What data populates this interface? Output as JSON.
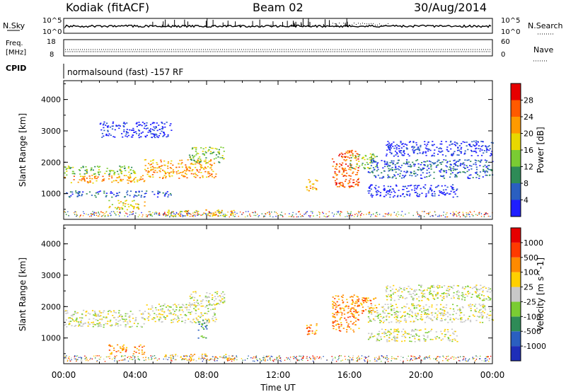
{
  "header": {
    "station": "Kodiak (fitACF)",
    "beam": "Beam 02",
    "date": "30/Aug/2014"
  },
  "strip_panels": {
    "nsky_label": "N.Sky",
    "nsky_ticks": [
      "10^5",
      "10^0"
    ],
    "nsearch_label": "N.Search",
    "nsearch_ticks": [
      "10^5",
      "10^0"
    ],
    "freq_label_line1": "Freq.",
    "freq_label_line2": "[MHz]",
    "freq_ticks": [
      "18",
      "8"
    ],
    "nave_label": "Nave",
    "nave_ticks": [
      "60",
      "0"
    ],
    "cpid_label": "CPID",
    "cpid_text": "normalsound (fast) -157 RF"
  },
  "chart_data": [
    {
      "type": "heatmap",
      "panel": "power",
      "ylabel": "Slant Range [km]",
      "xlabel": "",
      "ylim": [
        180,
        4600
      ],
      "xlim_hours": [
        0,
        24
      ],
      "yticks": [
        "1000",
        "2000",
        "3000",
        "4000"
      ],
      "colorbar_label": "Power [dB]",
      "colorbar_ticks": [
        "4",
        "8",
        "12",
        "16",
        "20",
        "24",
        "28"
      ],
      "colorbar_colors": [
        "#1e1eff",
        "#2a5fc0",
        "#2e8b57",
        "#7acc33",
        "#e8d800",
        "#ff9a00",
        "#ff5a00",
        "#e60000"
      ],
      "echo_bands": [
        {
          "t0": 0.0,
          "t1": 4.5,
          "r0": 1350,
          "r1": 1600,
          "level": 5
        },
        {
          "t0": 0.0,
          "t1": 4.0,
          "r0": 1600,
          "r1": 1900,
          "level": 3
        },
        {
          "t0": 4.5,
          "t1": 8.5,
          "r0": 1500,
          "r1": 2100,
          "level": 5
        },
        {
          "t0": 7.0,
          "t1": 9.0,
          "r0": 2000,
          "r1": 2500,
          "level": 3
        },
        {
          "t0": 2.5,
          "t1": 4.5,
          "r0": 500,
          "r1": 800,
          "level": 4
        },
        {
          "t0": 0.0,
          "t1": 6.0,
          "r0": 900,
          "r1": 1100,
          "level": 1
        },
        {
          "t0": 2.0,
          "t1": 6.0,
          "r0": 2800,
          "r1": 3300,
          "level": 0
        },
        {
          "t0": 5.5,
          "t1": 9.5,
          "r0": 300,
          "r1": 500,
          "level": 4
        },
        {
          "t0": 13.5,
          "t1": 14.2,
          "r0": 1100,
          "r1": 1500,
          "level": 5
        },
        {
          "t0": 15.0,
          "t1": 16.5,
          "r0": 1200,
          "r1": 2400,
          "level": 6
        },
        {
          "t0": 16.0,
          "t1": 17.5,
          "r0": 1800,
          "r1": 2300,
          "level": 3
        },
        {
          "t0": 17.0,
          "t1": 24.0,
          "r0": 1500,
          "r1": 2100,
          "level": 1
        },
        {
          "t0": 17.0,
          "t1": 22.0,
          "r0": 900,
          "r1": 1300,
          "level": 0
        },
        {
          "t0": 18.0,
          "t1": 24.0,
          "r0": 2200,
          "r1": 2700,
          "level": 0
        }
      ]
    },
    {
      "type": "heatmap",
      "panel": "velocity",
      "ylabel": "Slant Range [km]",
      "xlabel": "Time UT",
      "ylim": [
        180,
        4600
      ],
      "xlim_hours": [
        0,
        24
      ],
      "yticks": [
        "1000",
        "2000",
        "3000",
        "4000"
      ],
      "xticks": [
        "00:00",
        "04:00",
        "08:00",
        "12:00",
        "16:00",
        "20:00",
        "00:00"
      ],
      "colorbar_label": "Velocity [m s^-1]",
      "colorbar_ticks": [
        "1000",
        "500",
        "100",
        "25",
        "-25",
        "-100",
        "-500",
        "-1000"
      ],
      "colorbar_colors": [
        "#1e2eb8",
        "#2a5fc0",
        "#2e8b57",
        "#7acc33",
        "#c8c8c8",
        "#ffd000",
        "#ff8a00",
        "#ff3a00",
        "#e60000"
      ],
      "echo_bands": [
        {
          "t0": 0.0,
          "t1": 4.5,
          "r0": 1350,
          "r1": 1900,
          "level": 4
        },
        {
          "t0": 4.5,
          "t1": 8.5,
          "r0": 1500,
          "r1": 2100,
          "level": 4
        },
        {
          "t0": 7.0,
          "t1": 9.0,
          "r0": 2000,
          "r1": 2500,
          "level": 4
        },
        {
          "t0": 2.5,
          "t1": 4.5,
          "r0": 500,
          "r1": 800,
          "level": 6
        },
        {
          "t0": 7.5,
          "t1": 8.0,
          "r0": 1000,
          "r1": 1600,
          "level": 2
        },
        {
          "t0": 5.5,
          "t1": 9.5,
          "r0": 300,
          "r1": 500,
          "level": 5
        },
        {
          "t0": 13.5,
          "t1": 14.2,
          "r0": 1100,
          "r1": 1500,
          "level": 6
        },
        {
          "t0": 15.0,
          "t1": 16.5,
          "r0": 1200,
          "r1": 2400,
          "level": 6
        },
        {
          "t0": 16.0,
          "t1": 17.5,
          "r0": 1800,
          "r1": 2300,
          "level": 6
        },
        {
          "t0": 17.0,
          "t1": 24.0,
          "r0": 1500,
          "r1": 2100,
          "level": 4
        },
        {
          "t0": 17.0,
          "t1": 22.0,
          "r0": 900,
          "r1": 1300,
          "level": 4
        },
        {
          "t0": 18.0,
          "t1": 24.0,
          "r0": 2200,
          "r1": 2700,
          "level": 4
        }
      ]
    }
  ]
}
